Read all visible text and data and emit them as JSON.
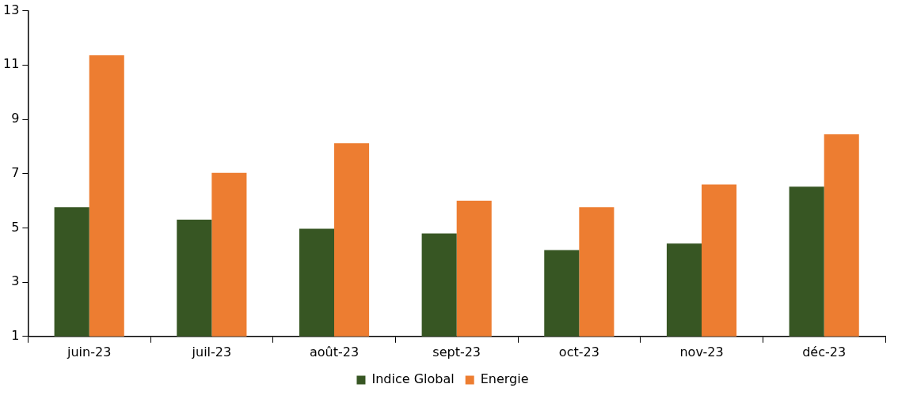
{
  "chart_data": {
    "type": "bar",
    "categories": [
      "juin-23",
      "juil-23",
      "août-23",
      "sept-23",
      "oct-23",
      "nov-23",
      "déc-23"
    ],
    "series": [
      {
        "name": "Indice Global",
        "color": "#375623",
        "values": [
          5.76,
          5.3,
          4.97,
          4.79,
          4.18,
          4.42,
          6.52
        ]
      },
      {
        "name": "Energie",
        "color": "#ed7d31",
        "values": [
          11.36,
          7.03,
          8.12,
          6.0,
          5.76,
          6.6,
          8.45
        ]
      }
    ],
    "ylim": [
      1,
      13
    ],
    "yticks": [
      1,
      3,
      5,
      7,
      9,
      11,
      13
    ],
    "grid": false,
    "legend": "bottom"
  }
}
